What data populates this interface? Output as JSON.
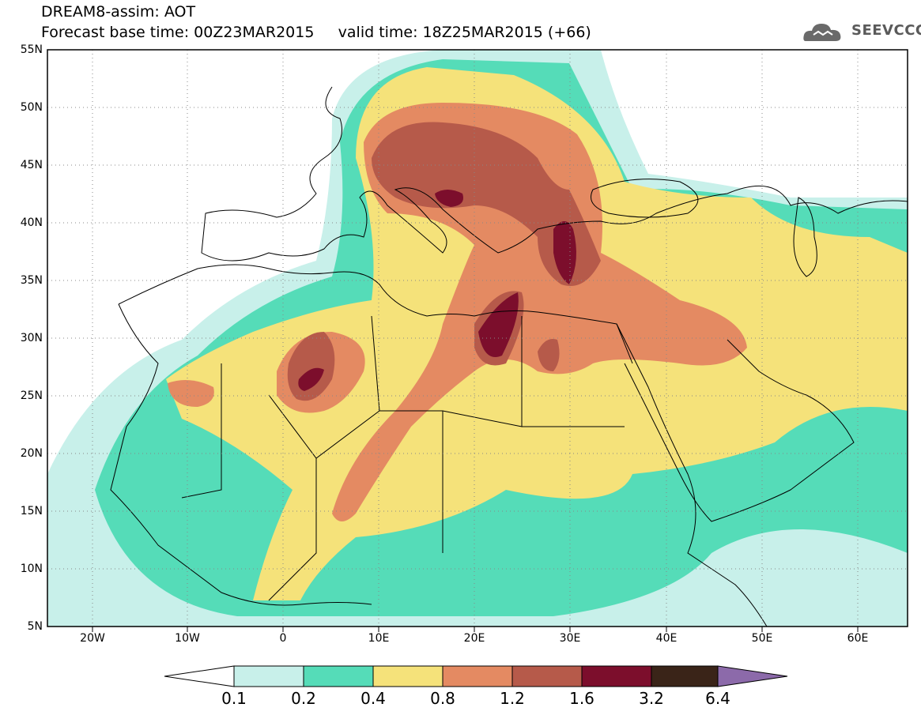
{
  "header": {
    "title_line1": "DREAM8-assim: AOT",
    "title_line2": "Forecast base time: 00Z23MAR2015     valid time: 18Z25MAR2015 (+66)"
  },
  "logo": {
    "text": "SEEVCCC",
    "icon": "cloud-logo-icon"
  },
  "map": {
    "lat_labels": [
      "55N",
      "50N",
      "45N",
      "40N",
      "35N",
      "30N",
      "25N",
      "20N",
      "15N",
      "10N",
      "5N"
    ],
    "lon_labels": [
      "20W",
      "10W",
      "0",
      "10E",
      "20E",
      "30E",
      "40E",
      "50E",
      "60E"
    ],
    "grid": true,
    "colors": {
      "ocean_bg": "#ffffff",
      "c01": "#c8f0ea",
      "c02": "#55dcb8",
      "c04": "#f5e27a",
      "c08": "#e48a62",
      "c12": "#b65a4a",
      "c16": "#7c0e2c",
      "c32": "#3a2418",
      "c64": "#8c6aaa"
    }
  },
  "colorbar": {
    "labels": [
      "0.1",
      "0.2",
      "0.4",
      "0.8",
      "1.2",
      "1.6",
      "3.2",
      "6.4"
    ],
    "colors": [
      "#c8f0ea",
      "#55dcb8",
      "#f5e27a",
      "#e48a62",
      "#b65a4a",
      "#7c0e2c",
      "#3a2418"
    ],
    "under_color": "#ffffff",
    "over_color": "#8c6aaa"
  }
}
